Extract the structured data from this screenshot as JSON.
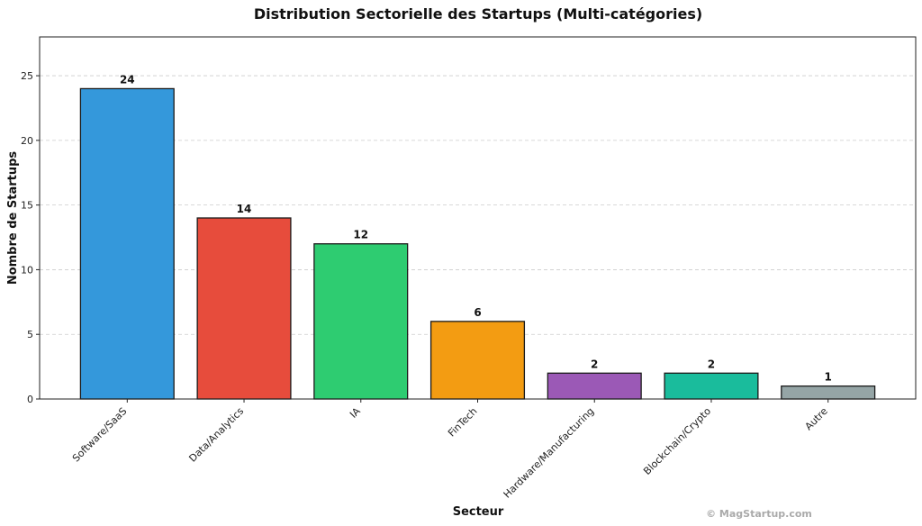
{
  "chart_data": {
    "type": "bar",
    "title": "Distribution Sectorielle des Startups (Multi-catégories)",
    "xlabel": "Secteur",
    "ylabel": "Nombre de Startups",
    "categories": [
      "Software/SaaS",
      "Data/Analytics",
      "IA",
      "FinTech",
      "Hardware/Manufacturing",
      "Blockchain/Crypto",
      "Autre"
    ],
    "values": [
      24,
      14,
      12,
      6,
      2,
      2,
      1
    ],
    "colors": [
      "#3498db",
      "#e74c3c",
      "#2ecc71",
      "#f39c12",
      "#9b59b6",
      "#1abc9c",
      "#95a5a6"
    ],
    "ylim": [
      0,
      28
    ],
    "yticks": [
      0,
      5,
      10,
      15,
      20,
      25
    ],
    "grid": true,
    "watermark": "© MagStartup.com"
  }
}
